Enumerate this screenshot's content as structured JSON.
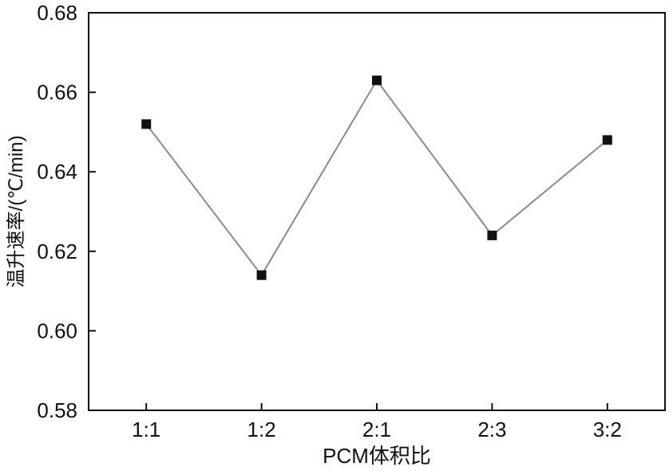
{
  "chart_data": {
    "type": "line",
    "categories": [
      "1:1",
      "1:2",
      "2:1",
      "2:3",
      "3:2"
    ],
    "values": [
      0.652,
      0.614,
      0.663,
      0.624,
      0.648
    ],
    "title": "",
    "xlabel": "PCM体积比",
    "ylabel": "温升速率/(℃/min)",
    "ylim": [
      0.58,
      0.68
    ],
    "yticks": [
      "0.58",
      "0.60",
      "0.62",
      "0.64",
      "0.66",
      "0.68"
    ],
    "grid": false,
    "marker": "square",
    "line_color": "#8a8a8a",
    "marker_color": "#111111"
  }
}
